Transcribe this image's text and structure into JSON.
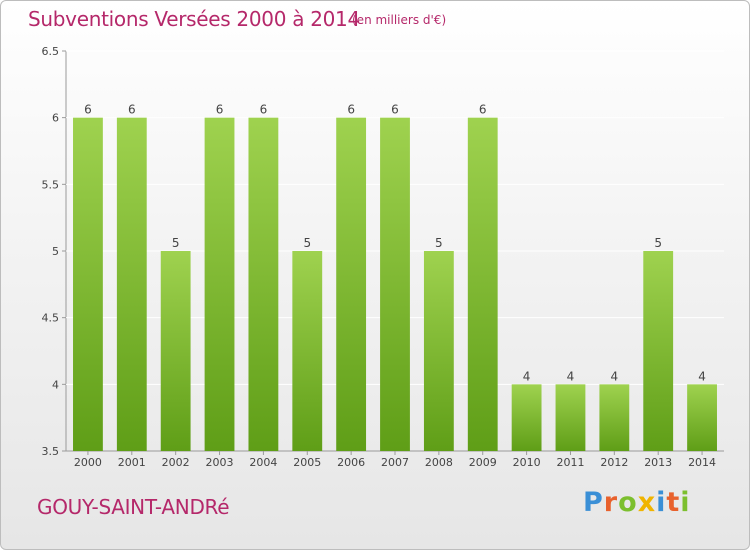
{
  "title": "Subventions Versées 2000 à 2014",
  "subtitle": "(en milliers d'€)",
  "commune": "GOUY-SAINT-ANDRé",
  "logo": {
    "letters": [
      "P",
      "r",
      "o",
      "x",
      "i",
      "t",
      "i"
    ]
  },
  "colors": {
    "bar_top": "#9fd24f",
    "bar_bottom": "#5f9e17",
    "text": "#b5286a",
    "grid": "#ffffff"
  },
  "chart_data": {
    "type": "bar",
    "categories": [
      "2000",
      "2001",
      "2002",
      "2003",
      "2004",
      "2005",
      "2006",
      "2007",
      "2008",
      "2009",
      "2010",
      "2011",
      "2012",
      "2013",
      "2014"
    ],
    "values": [
      6,
      6,
      5,
      6,
      6,
      5,
      6,
      6,
      5,
      6,
      4,
      4,
      4,
      5,
      4
    ],
    "y_ticks": [
      "3.5",
      "4",
      "4.5",
      "5",
      "5.5",
      "6",
      "6.5"
    ],
    "ylim": [
      3.5,
      6.5
    ],
    "grid": true,
    "data_labels": true
  }
}
